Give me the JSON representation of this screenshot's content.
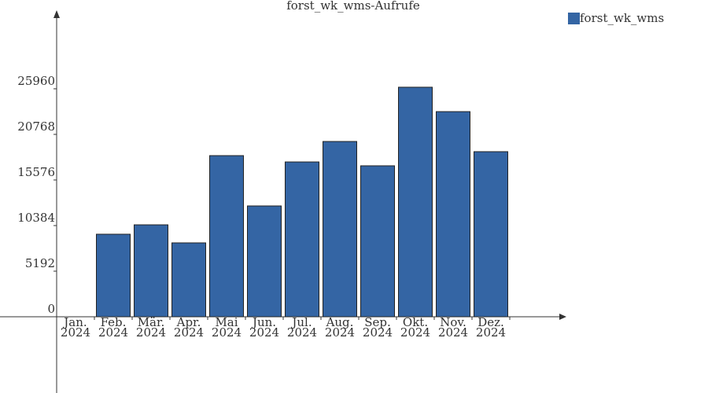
{
  "chart_data": {
    "type": "bar",
    "title": "forst_wk_wms-Aufrufe",
    "categories": [
      "Jan.\n2024",
      "Feb.\n2024",
      "Mär.\n2024",
      "Apr.\n2024",
      "Mai\n2024",
      "Jun.\n2024",
      "Jul.\n2024",
      "Aug.\n2024",
      "Sep.\n2024",
      "Okt.\n2024",
      "Nov.\n2024",
      "Dez.\n2024"
    ],
    "series": [
      {
        "name": "forst_wk_wms",
        "color": "#3465a4",
        "values": [
          0,
          9400,
          10470,
          8415,
          18350,
          12620,
          17630,
          19960,
          17190,
          26140,
          23360,
          18800
        ]
      }
    ],
    "ylim": [
      0,
      34460
    ],
    "yticks": [
      0,
      5192,
      10384,
      15576,
      20768,
      25960
    ],
    "legend": "top-right"
  }
}
